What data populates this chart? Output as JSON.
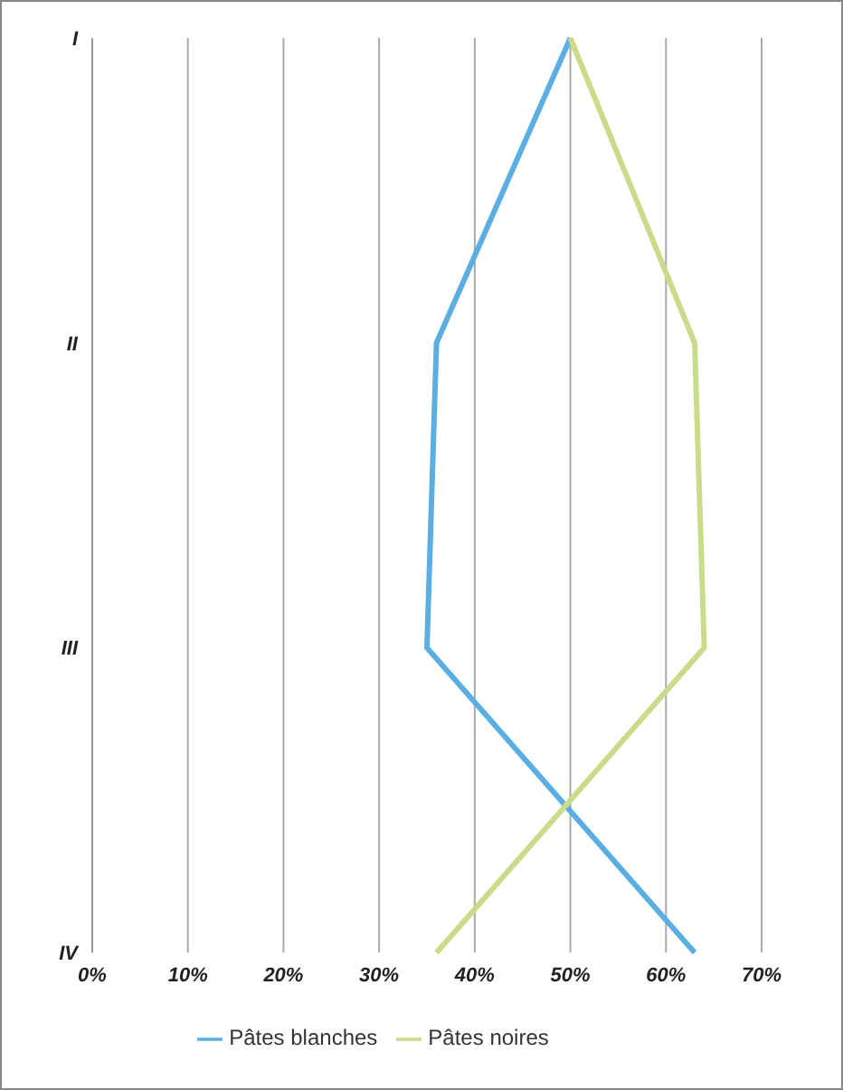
{
  "chart_data": {
    "type": "line",
    "orientation": "horizontal",
    "categories": [
      "I",
      "II",
      "III",
      "IV"
    ],
    "series": [
      {
        "name": "Pâtes blanches",
        "color": "#5aaee2",
        "values": [
          50,
          36,
          35,
          63
        ]
      },
      {
        "name": "Pâtes noires",
        "color": "#c8dc8a",
        "values": [
          50,
          63,
          64,
          36
        ]
      }
    ],
    "xlim": [
      0,
      70
    ],
    "xticks": [
      {
        "value": 0,
        "label": "0%"
      },
      {
        "value": 10,
        "label": "10%"
      },
      {
        "value": 20,
        "label": "20%"
      },
      {
        "value": 30,
        "label": "30%"
      },
      {
        "value": 40,
        "label": "40%"
      },
      {
        "value": 50,
        "label": "50%"
      },
      {
        "value": 60,
        "label": "60%"
      },
      {
        "value": 70,
        "label": "70%"
      }
    ],
    "grid": "x",
    "legend": "bottom",
    "marker": "none",
    "line_style": "solid"
  }
}
